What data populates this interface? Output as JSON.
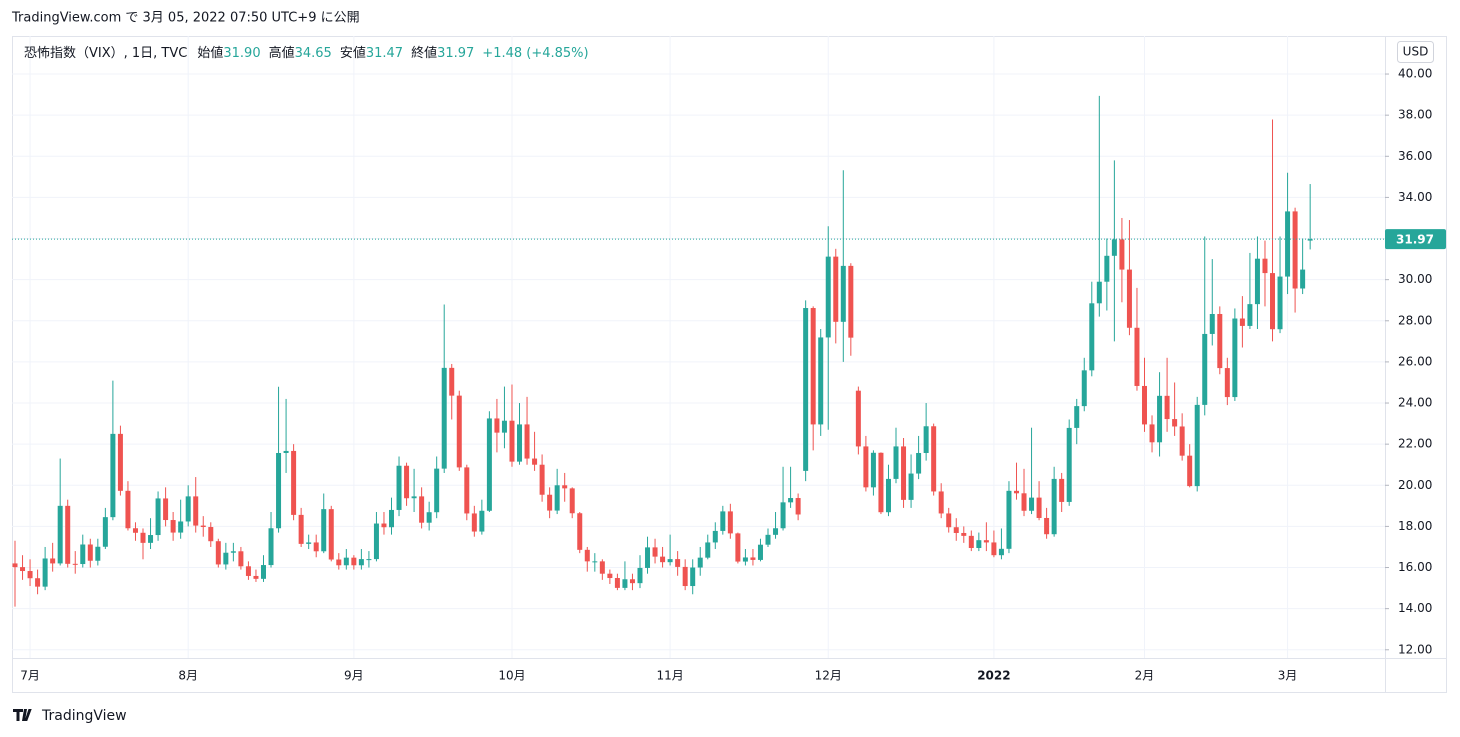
{
  "chart_data": {
    "type": "candlestick",
    "published": "TradingView.com で 3月 05, 2022 07:50 UTC+9 に公開",
    "legend": {
      "symbol": "恐怖指数（VIX）, 1日, TVC",
      "fields": [
        {
          "name": "始値",
          "text": "31.90"
        },
        {
          "name": "高値",
          "text": "34.65"
        },
        {
          "name": "安値",
          "text": "31.47"
        },
        {
          "name": "終値",
          "text": "31.97"
        }
      ],
      "change": "+1.48 (+4.85%)"
    },
    "currency": "USD",
    "last_price_label": "31.97",
    "brand": "TradingView",
    "up_color": "#26a69a",
    "down_color": "#ef5350",
    "ylim": [
      11.6,
      41.85
    ],
    "yticks": [
      {
        "value": 12,
        "label": "12.00"
      },
      {
        "value": 14,
        "label": "14.00"
      },
      {
        "value": 16,
        "label": "16.00"
      },
      {
        "value": 18,
        "label": "18.00"
      },
      {
        "value": 20,
        "label": "20.00"
      },
      {
        "value": 22,
        "label": "22.00"
      },
      {
        "value": 24,
        "label": "24.00"
      },
      {
        "value": 26,
        "label": "26.00"
      },
      {
        "value": 28,
        "label": "28.00"
      },
      {
        "value": 30,
        "label": "30.00"
      },
      {
        "value": 32,
        "label": "32.00"
      },
      {
        "value": 34,
        "label": "34.00"
      },
      {
        "value": 36,
        "label": "36.00"
      },
      {
        "value": 38,
        "label": "38.00"
      },
      {
        "value": 40,
        "label": "40.00"
      }
    ],
    "grid": true,
    "categories": [
      null,
      null,
      "7月",
      null,
      null,
      null,
      null,
      null,
      null,
      null,
      null,
      null,
      null,
      null,
      null,
      null,
      null,
      null,
      null,
      null,
      null,
      null,
      null,
      "8月",
      null,
      null,
      null,
      null,
      null,
      null,
      null,
      null,
      null,
      null,
      null,
      null,
      null,
      null,
      null,
      null,
      null,
      null,
      null,
      null,
      null,
      "9月",
      null,
      null,
      null,
      null,
      null,
      null,
      null,
      null,
      null,
      null,
      null,
      null,
      null,
      null,
      null,
      null,
      null,
      null,
      null,
      null,
      "10月",
      null,
      null,
      null,
      null,
      null,
      null,
      null,
      null,
      null,
      null,
      null,
      null,
      null,
      null,
      null,
      null,
      null,
      null,
      null,
      null,
      "11月",
      null,
      null,
      null,
      null,
      null,
      null,
      null,
      null,
      null,
      null,
      null,
      null,
      null,
      null,
      null,
      null,
      null,
      null,
      null,
      null,
      "12月",
      null,
      null,
      null,
      null,
      null,
      null,
      null,
      null,
      null,
      null,
      null,
      null,
      null,
      null,
      null,
      null,
      null,
      null,
      null,
      null,
      null,
      "2022",
      null,
      null,
      null,
      null,
      null,
      null,
      null,
      null,
      null,
      null,
      null,
      null,
      null,
      null,
      null,
      null,
      null,
      null,
      null,
      "2月",
      null,
      null,
      null,
      null,
      null,
      null,
      null,
      null,
      null,
      null,
      null,
      null,
      null,
      null,
      null,
      null,
      null,
      null,
      "3月",
      null,
      null,
      null
    ],
    "open": [
      16.2,
      16.02,
      15.83,
      15.48,
      15.07,
      16.44,
      16.2,
      19.0,
      16.18,
      16.17,
      17.12,
      16.33,
      17.01,
      18.45,
      22.5,
      19.73,
      17.91,
      17.69,
      17.2,
      17.58,
      19.36,
      18.31,
      17.7,
      18.24,
      19.46,
      18.04,
      17.97,
      17.28,
      16.15,
      16.72,
      16.79,
      16.06,
      15.59,
      15.45,
      16.12,
      17.91,
      21.57,
      21.67,
      18.56,
      17.15,
      17.22,
      16.79,
      18.84,
      16.39,
      16.11,
      16.48,
      16.11,
      16.41,
      16.41,
      18.14,
      17.96,
      18.8,
      20.95,
      19.37,
      19.46,
      18.18,
      18.69,
      20.81,
      25.71,
      24.36,
      20.87,
      18.63,
      17.75,
      18.76,
      23.25,
      22.56,
      23.14,
      21.15,
      22.96,
      21.3,
      21.0,
      19.54,
      18.77,
      20.0,
      19.85,
      18.64,
      16.86,
      16.3,
      16.3,
      15.7,
      15.49,
      15.01,
      15.43,
      15.24,
      15.98,
      16.98,
      16.53,
      16.26,
      16.41,
      16.03,
      15.1,
      16.0,
      16.48,
      17.22,
      17.78,
      18.73,
      17.66,
      16.29,
      16.49,
      16.37,
      17.11,
      17.59,
      17.91,
      19.17,
      19.38,
      20.7,
      28.62,
      22.96,
      27.19,
      31.12,
      27.95,
      30.67,
      24.6,
      21.89,
      19.9,
      21.58,
      18.69,
      20.31,
      21.89,
      19.29,
      20.57,
      21.57,
      22.87,
      19.7,
      18.63,
      17.96,
      17.68,
      17.54,
      16.95,
      17.33,
      17.22,
      16.6,
      16.91,
      19.73,
      19.61,
      18.76,
      19.4,
      18.41,
      17.62,
      20.31,
      19.19,
      22.79,
      23.85,
      25.59,
      28.85,
      29.9,
      31.16,
      31.96,
      30.49,
      27.66,
      24.83,
      22.96,
      22.09,
      24.35,
      23.22,
      22.86,
      21.44,
      19.96,
      23.91,
      27.36,
      28.33,
      25.7,
      24.29,
      28.11,
      27.75,
      28.81,
      31.02,
      30.32,
      27.59,
      30.15,
      33.32,
      29.57,
      31.9
    ],
    "high": [
      17.3,
      16.6,
      16.4,
      15.9,
      17.0,
      17.2,
      21.3,
      19.3,
      16.8,
      17.6,
      17.4,
      17.4,
      18.9,
      25.09,
      22.9,
      20.2,
      18.2,
      17.9,
      18.4,
      19.7,
      19.9,
      18.7,
      19.3,
      20.0,
      20.4,
      18.5,
      18.2,
      17.4,
      17.2,
      17.2,
      17.0,
      16.3,
      15.9,
      16.6,
      18.7,
      24.79,
      24.2,
      22.0,
      18.9,
      17.6,
      17.6,
      19.6,
      19.0,
      16.7,
      16.9,
      16.6,
      16.9,
      16.8,
      18.7,
      18.7,
      19.4,
      21.4,
      21.1,
      20.8,
      19.9,
      19.2,
      21.4,
      28.79,
      25.9,
      24.6,
      21.0,
      19.0,
      19.3,
      23.6,
      24.2,
      24.8,
      24.9,
      24.0,
      24.3,
      22.6,
      21.5,
      19.9,
      20.8,
      20.6,
      19.9,
      18.7,
      17.0,
      16.7,
      16.4,
      15.9,
      15.7,
      16.3,
      15.7,
      16.6,
      17.5,
      17.4,
      17.0,
      17.6,
      16.8,
      16.4,
      16.4,
      17.0,
      17.6,
      18.2,
      19.0,
      19.1,
      17.7,
      16.9,
      16.9,
      17.4,
      17.9,
      18.7,
      20.9,
      20.9,
      19.6,
      28.99,
      28.7,
      27.6,
      32.6,
      31.5,
      35.32,
      30.8,
      24.8,
      22.4,
      21.7,
      21.6,
      21.0,
      22.8,
      22.3,
      21.5,
      22.4,
      24.0,
      23.0,
      20.1,
      18.9,
      18.4,
      18.0,
      17.8,
      17.7,
      18.2,
      17.8,
      17.9,
      20.2,
      21.1,
      20.8,
      22.8,
      20.2,
      18.9,
      20.9,
      20.6,
      23.2,
      24.2,
      26.2,
      29.9,
      38.94,
      32.0,
      35.8,
      33.0,
      32.9,
      29.6,
      26.2,
      23.4,
      25.5,
      26.2,
      25.0,
      23.5,
      22.0,
      24.3,
      32.1,
      31.0,
      28.7,
      26.2,
      28.6,
      29.2,
      31.3,
      32.1,
      31.9,
      37.79,
      32.1,
      35.2,
      33.5,
      32.0,
      34.65
    ],
    "low": [
      14.1,
      15.4,
      15.1,
      14.7,
      14.9,
      15.8,
      16.1,
      16.0,
      15.7,
      16.0,
      16.0,
      16.1,
      16.9,
      18.3,
      19.5,
      17.8,
      17.3,
      16.4,
      16.9,
      17.3,
      18.0,
      17.3,
      17.4,
      18.0,
      17.7,
      17.5,
      17.0,
      16.0,
      15.9,
      16.3,
      15.9,
      15.4,
      15.3,
      15.3,
      16.0,
      17.7,
      20.6,
      18.3,
      17.0,
      16.9,
      16.5,
      16.7,
      16.3,
      15.9,
      15.9,
      15.9,
      15.9,
      16.0,
      16.3,
      17.6,
      17.6,
      18.5,
      19.0,
      18.7,
      17.9,
      17.8,
      18.4,
      20.6,
      23.2,
      20.7,
      18.3,
      17.5,
      17.6,
      18.7,
      21.6,
      21.8,
      20.9,
      21.0,
      21.0,
      20.7,
      19.2,
      18.4,
      18.6,
      19.2,
      18.4,
      16.7,
      15.8,
      15.8,
      15.4,
      15.2,
      14.9,
      14.9,
      14.9,
      15.0,
      15.7,
      16.2,
      16.0,
      16.1,
      15.6,
      14.9,
      14.7,
      15.6,
      16.4,
      16.9,
      17.6,
      17.4,
      16.2,
      16.1,
      16.1,
      16.3,
      17.0,
      17.4,
      17.8,
      18.9,
      18.3,
      20.2,
      21.7,
      22.4,
      22.7,
      26.9,
      26.0,
      26.3,
      21.5,
      19.7,
      19.5,
      18.6,
      18.5,
      20.1,
      18.9,
      18.9,
      20.3,
      21.2,
      19.5,
      18.4,
      17.7,
      17.3,
      17.2,
      16.8,
      16.8,
      16.8,
      16.5,
      16.4,
      16.7,
      19.3,
      18.5,
      18.6,
      18.3,
      17.4,
      17.5,
      18.7,
      19.0,
      22.0,
      23.6,
      25.3,
      28.2,
      28.5,
      27.0,
      28.9,
      27.3,
      24.6,
      22.6,
      21.6,
      21.4,
      22.6,
      22.4,
      21.2,
      19.9,
      19.7,
      23.4,
      26.8,
      25.4,
      23.9,
      24.1,
      26.7,
      27.6,
      27.6,
      28.7,
      27.0,
      27.4,
      29.3,
      28.4,
      29.3,
      31.47
    ],
    "close": [
      16.02,
      15.83,
      15.48,
      15.07,
      16.44,
      16.2,
      19.0,
      16.18,
      16.17,
      17.12,
      16.33,
      17.01,
      18.45,
      22.5,
      19.73,
      17.91,
      17.69,
      17.2,
      17.58,
      19.36,
      18.31,
      17.7,
      18.24,
      19.46,
      18.04,
      17.97,
      17.28,
      16.15,
      16.72,
      16.79,
      16.06,
      15.59,
      15.45,
      16.12,
      17.91,
      21.57,
      21.67,
      18.56,
      17.15,
      17.22,
      16.79,
      18.84,
      16.39,
      16.11,
      16.48,
      16.11,
      16.41,
      16.41,
      18.14,
      17.96,
      18.8,
      20.95,
      19.37,
      19.46,
      18.18,
      18.69,
      20.81,
      25.71,
      24.36,
      20.87,
      18.63,
      17.75,
      18.76,
      23.25,
      22.56,
      23.14,
      21.15,
      22.96,
      21.3,
      21.0,
      19.54,
      18.77,
      20.0,
      19.85,
      18.64,
      16.86,
      16.3,
      16.3,
      15.7,
      15.49,
      15.01,
      15.43,
      15.24,
      15.98,
      16.98,
      16.53,
      16.26,
      16.41,
      16.03,
      15.1,
      16.0,
      16.48,
      17.22,
      17.78,
      18.73,
      17.66,
      16.29,
      16.49,
      16.37,
      17.11,
      17.59,
      17.91,
      19.17,
      19.38,
      18.58,
      28.62,
      22.96,
      27.19,
      31.12,
      27.95,
      30.67,
      27.18,
      21.89,
      19.9,
      21.58,
      18.69,
      20.31,
      21.89,
      19.29,
      20.57,
      21.57,
      22.87,
      19.7,
      18.63,
      17.96,
      17.68,
      17.54,
      16.95,
      17.33,
      17.22,
      16.6,
      16.91,
      19.73,
      19.61,
      18.76,
      19.4,
      18.41,
      17.62,
      20.31,
      19.19,
      22.79,
      23.85,
      25.59,
      28.85,
      29.9,
      31.16,
      31.96,
      30.49,
      27.66,
      24.83,
      22.96,
      22.09,
      24.35,
      23.22,
      22.86,
      21.44,
      19.96,
      23.91,
      27.36,
      28.33,
      25.7,
      24.29,
      28.11,
      27.75,
      28.81,
      31.02,
      30.32,
      27.59,
      30.15,
      33.32,
      29.57,
      30.49,
      31.97
    ]
  }
}
